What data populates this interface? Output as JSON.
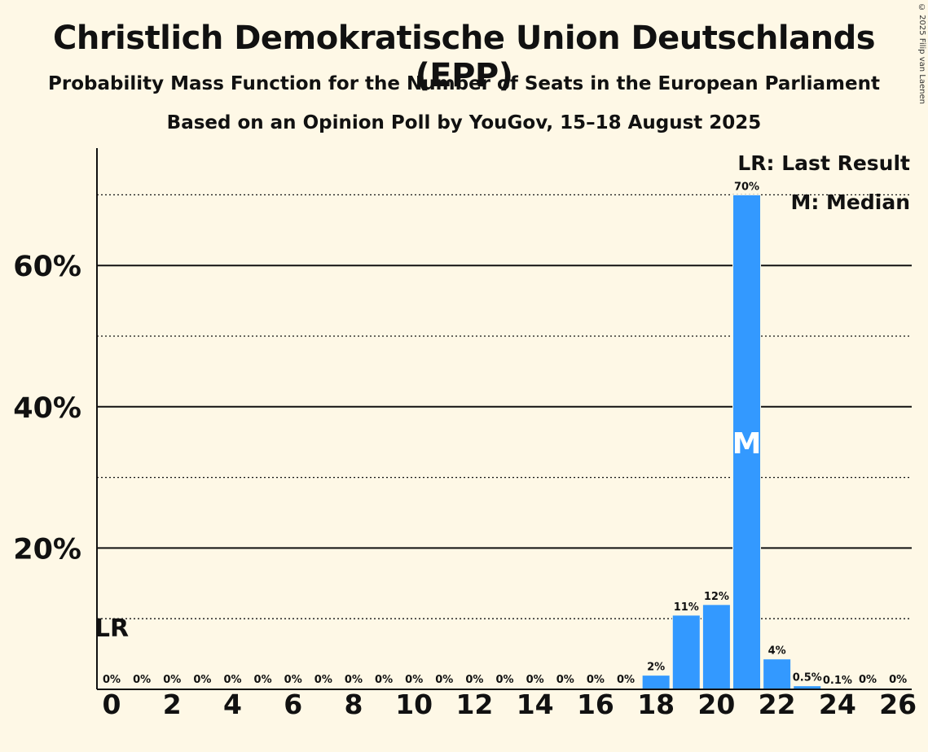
{
  "chart_data": {
    "type": "bar",
    "title": "Christlich Demokratische Union Deutschlands (EPP)",
    "subtitle": "Probability Mass Function for the Number of Seats in the European Parliament",
    "subtitle2": "Based on an Opinion Poll by YouGov, 15–18 August 2025",
    "copyright": "© 2025 Filip van Laenen",
    "categories": [
      0,
      1,
      2,
      3,
      4,
      5,
      6,
      7,
      8,
      9,
      10,
      11,
      12,
      13,
      14,
      15,
      16,
      17,
      18,
      19,
      20,
      21,
      22,
      23,
      24,
      25,
      26
    ],
    "values": [
      0,
      0,
      0,
      0,
      0,
      0,
      0,
      0,
      0,
      0,
      0,
      0,
      0,
      0,
      0,
      0,
      0,
      0,
      2,
      10.5,
      12,
      70,
      4.3,
      0.5,
      0.1,
      0,
      0
    ],
    "data_labels": [
      "0%",
      "0%",
      "0%",
      "0%",
      "0%",
      "0%",
      "0%",
      "0%",
      "0%",
      "0%",
      "0%",
      "0%",
      "0%",
      "0%",
      "0%",
      "0%",
      "0%",
      "0%",
      "2%",
      "11%",
      "12%",
      "70%",
      "4%",
      "0.5%",
      "0.1%",
      "0%",
      "0%"
    ],
    "xtick_labels": [
      "0",
      "2",
      "4",
      "6",
      "8",
      "10",
      "12",
      "14",
      "16",
      "18",
      "20",
      "22",
      "24",
      "26"
    ],
    "xticks": [
      0,
      2,
      4,
      6,
      8,
      10,
      12,
      14,
      16,
      18,
      20,
      22,
      24,
      26
    ],
    "yticks": [
      20,
      40,
      60
    ],
    "ytick_labels": [
      "20%",
      "40%",
      "60%"
    ],
    "minor_gridlines": [
      10,
      30,
      50,
      70
    ],
    "ylim": [
      0,
      77
    ],
    "median_seat": 21,
    "median_marker": "M",
    "last_result_seat": 0,
    "last_result_value": 10,
    "last_result_marker": "LR",
    "legend": [
      "LR: Last Result",
      "M: Median"
    ],
    "legend_position": "top-right",
    "bar_color": "#3399ff",
    "xlabel": "",
    "ylabel": ""
  }
}
